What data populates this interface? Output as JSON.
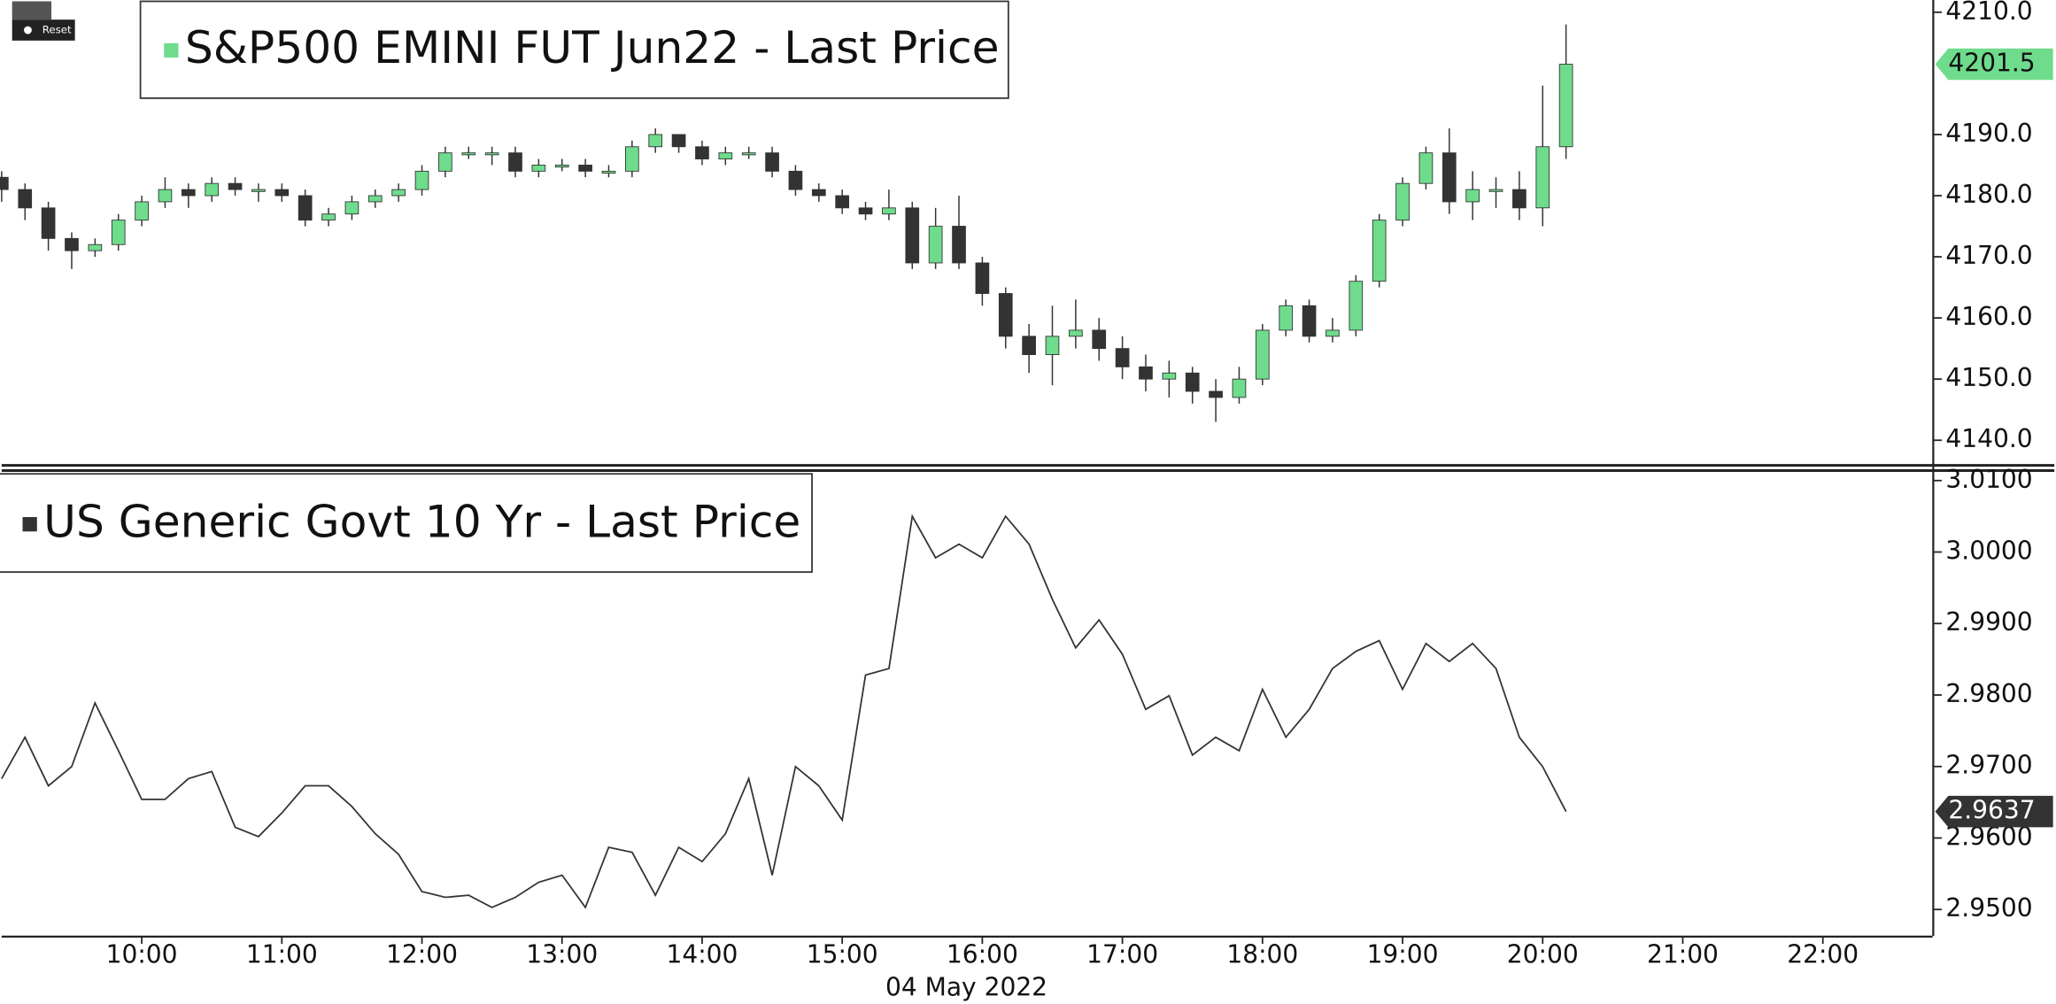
{
  "toolbar_label": "Reset",
  "chart_data": [
    {
      "type": "candlestick",
      "legend": "S&P500 EMINI FUT Jun22 - Last Price",
      "up_color": "#6edc8c",
      "down_color": "#333333",
      "x": [
        "09:00",
        "09:10",
        "09:20",
        "09:30",
        "09:40",
        "09:50",
        "10:00",
        "10:10",
        "10:20",
        "10:30",
        "10:40",
        "10:50",
        "11:00",
        "11:10",
        "11:20",
        "11:30",
        "11:40",
        "11:50",
        "12:00",
        "12:10",
        "12:20",
        "12:30",
        "12:40",
        "12:50",
        "13:00",
        "13:10",
        "13:20",
        "13:30",
        "13:40",
        "13:50",
        "14:00",
        "14:10",
        "14:20",
        "14:30",
        "14:40",
        "14:50",
        "15:00",
        "15:10",
        "15:20",
        "15:30",
        "15:40",
        "15:50",
        "16:00",
        "16:10",
        "16:20",
        "16:30",
        "16:40",
        "16:50",
        "17:00",
        "17:10",
        "17:20",
        "17:30",
        "17:40",
        "17:50",
        "18:00",
        "18:10",
        "18:20",
        "18:30",
        "18:40",
        "18:50",
        "19:00",
        "19:10",
        "19:20",
        "19:30",
        "19:40",
        "19:50",
        "20:00",
        "20:10"
      ],
      "open": [
        4183,
        4181,
        4178,
        4173,
        4171,
        4172,
        4176,
        4179,
        4181,
        4180,
        4182,
        4181,
        4181,
        4180,
        4176,
        4177,
        4179,
        4180,
        4181,
        4184,
        4187,
        4187,
        4187,
        4184,
        4185,
        4185,
        4184,
        4184,
        4188,
        4190,
        4188,
        4186,
        4187,
        4187,
        4184,
        4181,
        4180,
        4178,
        4177,
        4178,
        4169,
        4175,
        4169,
        4164,
        4157,
        4154,
        4157,
        4158,
        4155,
        4152,
        4150,
        4151,
        4148,
        4147,
        4150,
        4158,
        4162,
        4157,
        4158,
        4166,
        4176,
        4182,
        4187,
        4179,
        4181,
        4181,
        4178,
        4188
      ],
      "high": [
        4184,
        4182,
        4179,
        4174,
        4173,
        4177,
        4180,
        4183,
        4182,
        4183,
        4183,
        4182,
        4182,
        4181,
        4178,
        4180,
        4181,
        4182,
        4185,
        4188,
        4188,
        4188,
        4188,
        4186,
        4186,
        4186,
        4185,
        4189,
        4191,
        4190,
        4189,
        4188,
        4188,
        4188,
        4185,
        4182,
        4181,
        4179,
        4181,
        4179,
        4178,
        4180,
        4170,
        4165,
        4159,
        4162,
        4163,
        4160,
        4157,
        4154,
        4153,
        4152,
        4150,
        4152,
        4159,
        4163,
        4163,
        4160,
        4167,
        4177,
        4183,
        4188,
        4191,
        4184,
        4183,
        4184,
        4198,
        4208
      ],
      "low": [
        4179,
        4176,
        4171,
        4168,
        4170,
        4171,
        4175,
        4178,
        4178,
        4179,
        4180,
        4179,
        4179,
        4175,
        4175,
        4176,
        4178,
        4179,
        4180,
        4183,
        4186,
        4185,
        4183,
        4183,
        4184,
        4183,
        4183,
        4183,
        4187,
        4187,
        4185,
        4185,
        4186,
        4183,
        4180,
        4179,
        4177,
        4176,
        4176,
        4168,
        4168,
        4168,
        4162,
        4155,
        4151,
        4149,
        4155,
        4153,
        4150,
        4148,
        4147,
        4146,
        4143,
        4146,
        4149,
        4157,
        4156,
        4156,
        4157,
        4165,
        4175,
        4181,
        4177,
        4176,
        4178,
        4176,
        4175,
        4186
      ],
      "close": [
        4181,
        4178,
        4173,
        4171,
        4172,
        4176,
        4179,
        4181,
        4180,
        4182,
        4181,
        4181,
        4180,
        4176,
        4177,
        4179,
        4180,
        4181,
        4184,
        4187,
        4187,
        4187,
        4184,
        4185,
        4185,
        4184,
        4184,
        4188,
        4190,
        4188,
        4186,
        4187,
        4187,
        4184,
        4181,
        4180,
        4178,
        4177,
        4178,
        4169,
        4175,
        4169,
        4164,
        4157,
        4154,
        4157,
        4158,
        4155,
        4152,
        4150,
        4151,
        4148,
        4147,
        4150,
        4158,
        4162,
        4157,
        4158,
        4166,
        4176,
        4182,
        4187,
        4179,
        4181,
        4181,
        4178,
        4188,
        4201.5
      ],
      "xlim": [
        "09:00",
        "22:47"
      ],
      "ylim": [
        4136,
        4212
      ],
      "yticks": [
        {
          "value": 4140,
          "label": "4140.0"
        },
        {
          "value": 4150,
          "label": "4150.0"
        },
        {
          "value": 4160,
          "label": "4160.0"
        },
        {
          "value": 4170,
          "label": "4170.0"
        },
        {
          "value": 4180,
          "label": "4180.0"
        },
        {
          "value": 4190,
          "label": "4190.0"
        },
        {
          "value": 4210,
          "label": "4210.0"
        }
      ]
    },
    {
      "type": "line",
      "legend": "US Generic Govt 10 Yr - Last Price",
      "color": "#333333",
      "x": [
        "09:00",
        "09:10",
        "09:20",
        "09:30",
        "09:40",
        "09:50",
        "10:00",
        "10:10",
        "10:20",
        "10:30",
        "10:40",
        "10:50",
        "11:00",
        "11:10",
        "11:20",
        "11:30",
        "11:40",
        "11:50",
        "12:00",
        "12:10",
        "12:20",
        "12:30",
        "12:40",
        "12:50",
        "13:00",
        "13:10",
        "13:20",
        "13:30",
        "13:40",
        "13:50",
        "14:00",
        "14:10",
        "14:20",
        "14:30",
        "14:40",
        "14:50",
        "15:00",
        "15:10",
        "15:20",
        "15:30",
        "15:40",
        "15:50",
        "16:00",
        "16:10",
        "16:20",
        "16:30",
        "16:40",
        "16:50",
        "17:00",
        "17:10",
        "17:20",
        "17:30",
        "17:40",
        "17:50",
        "18:00",
        "18:10",
        "18:20",
        "18:30",
        "18:40",
        "18:50",
        "19:00",
        "19:10",
        "19:20",
        "19:30",
        "19:40",
        "19:50",
        "20:00",
        "20:10"
      ],
      "values": [
        2.9683,
        2.9741,
        2.9673,
        2.97,
        2.9789,
        2.9722,
        2.9654,
        2.9654,
        2.9683,
        2.9693,
        2.9615,
        2.9602,
        2.9635,
        2.9673,
        2.9673,
        2.9644,
        2.9606,
        2.9577,
        2.9525,
        2.9517,
        2.952,
        2.9503,
        2.9517,
        2.9538,
        2.9548,
        2.9503,
        2.9587,
        2.958,
        2.952,
        2.9587,
        2.9567,
        2.9606,
        2.9683,
        2.9548,
        2.97,
        2.9673,
        2.9625,
        2.9828,
        2.9837,
        3.005,
        2.9992,
        3.0011,
        2.9992,
        3.005,
        3.0011,
        2.9934,
        2.9866,
        2.9905,
        2.9857,
        2.978,
        2.9799,
        2.9716,
        2.9741,
        2.9722,
        2.9808,
        2.9741,
        2.978,
        2.9837,
        2.9861,
        2.9876,
        2.9808,
        2.9872,
        2.9847,
        2.9872,
        2.9837,
        2.9741,
        2.97,
        2.9637
      ],
      "xlim": [
        "09:00",
        "22:47"
      ],
      "ylim": [
        2.9463,
        3.0113
      ],
      "yticks": [
        {
          "value": 2.95,
          "label": "2.9500"
        },
        {
          "value": 2.96,
          "label": "2.9600"
        },
        {
          "value": 2.97,
          "label": "2.9700"
        },
        {
          "value": 2.98,
          "label": "2.9800"
        },
        {
          "value": 2.99,
          "label": "2.9900"
        },
        {
          "value": 3.0,
          "label": "3.0000"
        },
        {
          "value": 3.01,
          "label": "3.0100"
        }
      ],
      "xticks": [
        "10:00",
        "11:00",
        "12:00",
        "13:00",
        "14:00",
        "15:00",
        "16:00",
        "17:00",
        "18:00",
        "19:00",
        "20:00",
        "21:00",
        "22:00"
      ],
      "x_axis_label": "04 May 2022"
    }
  ]
}
